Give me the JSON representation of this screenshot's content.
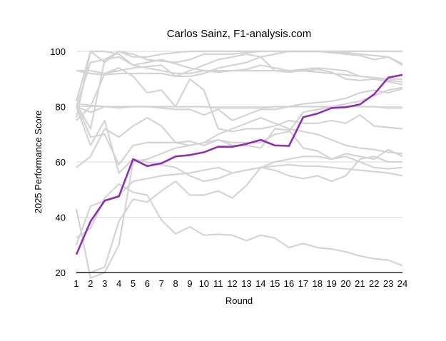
{
  "chart_data": {
    "type": "line",
    "title": "Carlos Sainz, F1-analysis.com",
    "xlabel": "Round",
    "ylabel": "2025 Performance Score",
    "xlim": [
      1,
      24
    ],
    "ylim": [
      20,
      100
    ],
    "x": [
      1,
      2,
      3,
      4,
      5,
      6,
      7,
      8,
      9,
      10,
      11,
      12,
      13,
      14,
      15,
      16,
      17,
      18,
      19,
      20,
      21,
      22,
      23,
      24
    ],
    "xticks": [
      "1",
      "2",
      "3",
      "4",
      "5",
      "6",
      "7",
      "8",
      "9",
      "10",
      "11",
      "12",
      "13",
      "14",
      "15",
      "16",
      "17",
      "18",
      "19",
      "20",
      "21",
      "22",
      "23",
      "24"
    ],
    "yticks": [
      "20",
      "40",
      "60",
      "80",
      "100"
    ],
    "grid": true,
    "highlight_color": "#8e2fb0",
    "background_color": "#d4d4d4",
    "series": [
      {
        "highlight": true,
        "values": [
          26.5,
          38.5,
          46,
          47.5,
          61,
          58.5,
          59.5,
          62,
          62.5,
          63.5,
          65.5,
          65.5,
          66.5,
          68,
          66,
          65.8,
          76.2,
          77.5,
          79.5,
          79.8,
          80.8,
          84.5,
          90.5,
          91.5
        ]
      },
      {
        "highlight": false,
        "values": [
          20,
          20,
          22,
          38.5,
          46.5,
          45.5,
          49.5,
          53,
          48,
          48,
          49.5,
          47,
          51.5,
          58,
          58.5,
          59,
          58.5,
          58.5,
          58,
          57.5,
          57,
          56.5,
          56,
          55
        ]
      },
      {
        "highlight": false,
        "values": [
          30,
          44,
          46,
          48,
          53,
          54,
          55,
          55.5,
          56,
          57,
          58,
          56,
          57,
          58,
          60,
          61,
          62,
          62,
          61,
          62,
          60,
          58,
          57.5,
          58
        ]
      },
      {
        "highlight": false,
        "values": [
          32.5,
          36,
          47,
          52,
          49,
          48,
          39,
          34,
          36.5,
          33.5,
          33.8,
          33.5,
          31.5,
          33.5,
          32.5,
          29,
          30.5,
          29,
          28.5,
          27.5,
          26,
          25,
          24.5,
          22.5
        ]
      },
      {
        "highlight": false,
        "values": [
          43,
          18,
          20,
          30,
          60,
          61,
          63,
          65,
          66,
          67,
          70,
          72,
          74,
          76,
          74,
          72,
          71,
          70,
          68,
          66,
          65,
          64.5,
          63.5,
          63
        ]
      },
      {
        "highlight": false,
        "values": [
          58,
          62,
          72,
          69,
          73,
          76,
          73,
          67,
          66,
          67,
          68,
          66,
          66,
          65,
          72,
          71.5,
          65,
          64,
          61,
          63,
          62,
          61,
          64.5,
          62
        ]
      },
      {
        "highlight": false,
        "values": [
          80,
          66,
          75,
          56,
          61,
          60,
          59,
          58,
          55,
          53,
          54,
          56,
          57,
          58,
          57,
          55,
          54,
          55,
          53,
          55,
          61,
          62,
          60,
          60
        ]
      },
      {
        "highlight": false,
        "values": [
          76,
          100,
          100,
          99,
          95,
          96,
          97,
          95.5,
          94,
          93,
          92.5,
          93,
          93.5,
          95,
          94,
          93,
          93.5,
          94,
          93.5,
          93,
          91,
          90.5,
          89.5,
          89
        ]
      },
      {
        "highlight": false,
        "values": [
          82,
          100,
          96,
          100,
          98,
          98,
          99,
          99.5,
          100,
          100,
          100,
          100,
          100,
          100,
          100,
          100,
          100,
          100,
          100,
          99.5,
          99,
          98.5,
          98,
          95.5
        ]
      },
      {
        "highlight": false,
        "values": [
          81,
          72,
          97,
          100,
          99,
          97,
          96.5,
          96,
          97,
          99,
          99,
          99,
          99.5,
          100,
          100,
          100,
          100,
          100,
          100,
          100,
          100,
          100,
          100,
          100
        ]
      },
      {
        "highlight": false,
        "values": [
          93,
          93,
          92,
          94,
          91,
          85,
          86,
          80,
          90,
          86,
          72,
          71,
          72,
          72,
          73,
          75,
          74,
          74,
          75,
          74,
          77,
          73,
          72.5,
          72
        ]
      },
      {
        "highlight": false,
        "values": [
          80,
          78,
          80,
          80,
          80,
          80,
          80,
          80,
          80,
          80,
          79.5,
          79.5,
          79.5,
          79.5,
          80,
          80,
          80,
          80,
          80,
          80,
          80,
          80,
          79.5,
          79.5
        ]
      },
      {
        "highlight": false,
        "values": [
          93,
          92,
          91.5,
          92,
          92,
          92,
          92,
          91,
          91,
          92,
          94,
          95,
          96,
          98,
          99,
          100,
          100,
          100,
          99.5,
          99,
          98.5,
          97,
          98,
          95
        ]
      },
      {
        "highlight": false,
        "values": [
          75,
          80,
          92,
          93,
          94,
          94.5,
          95,
          91,
          93,
          95,
          97,
          98,
          99,
          98,
          93,
          92.5,
          93,
          93.5,
          92.5,
          90,
          89.5,
          90,
          89,
          88
        ]
      },
      {
        "highlight": false,
        "values": [
          80,
          96,
          97,
          98,
          95,
          94,
          93,
          92,
          92,
          93,
          93,
          93,
          93,
          93,
          93,
          93,
          93,
          92.5,
          92,
          91.5,
          91,
          90.5,
          90,
          90
        ]
      },
      {
        "highlight": false,
        "values": [
          81,
          80.5,
          80,
          79.5,
          80,
          80,
          79.5,
          79,
          79,
          77,
          79,
          75,
          77,
          79,
          79,
          80,
          81,
          81.5,
          82,
          83,
          85,
          86,
          85,
          86.5
        ]
      },
      {
        "highlight": false,
        "values": [
          81,
          69,
          70,
          59,
          66,
          67,
          67,
          67,
          67.5,
          66,
          68,
          67,
          67,
          67,
          70,
          71,
          78,
          79,
          80,
          81,
          82,
          84,
          86,
          87
        ]
      }
    ]
  }
}
